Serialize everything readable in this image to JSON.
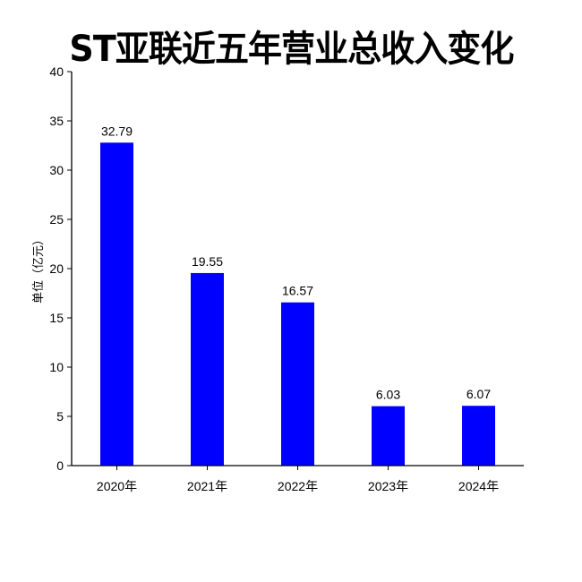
{
  "chart_data": {
    "type": "bar",
    "title": "ST亚联近五年营业总收入变化",
    "ylabel": "单位（亿元）",
    "xlabel": "",
    "categories": [
      "2020年",
      "2021年",
      "2022年",
      "2023年",
      "2024年"
    ],
    "values": [
      32.79,
      19.55,
      16.57,
      6.03,
      6.07
    ],
    "data_labels": [
      "32.79",
      "19.55",
      "16.57",
      "6.03",
      "6.07"
    ],
    "ylim": [
      0,
      40
    ],
    "yticks": [
      0,
      5,
      10,
      15,
      20,
      25,
      30,
      35,
      40
    ],
    "grid": false,
    "legend": "none",
    "bar_color": "#0000ff"
  }
}
